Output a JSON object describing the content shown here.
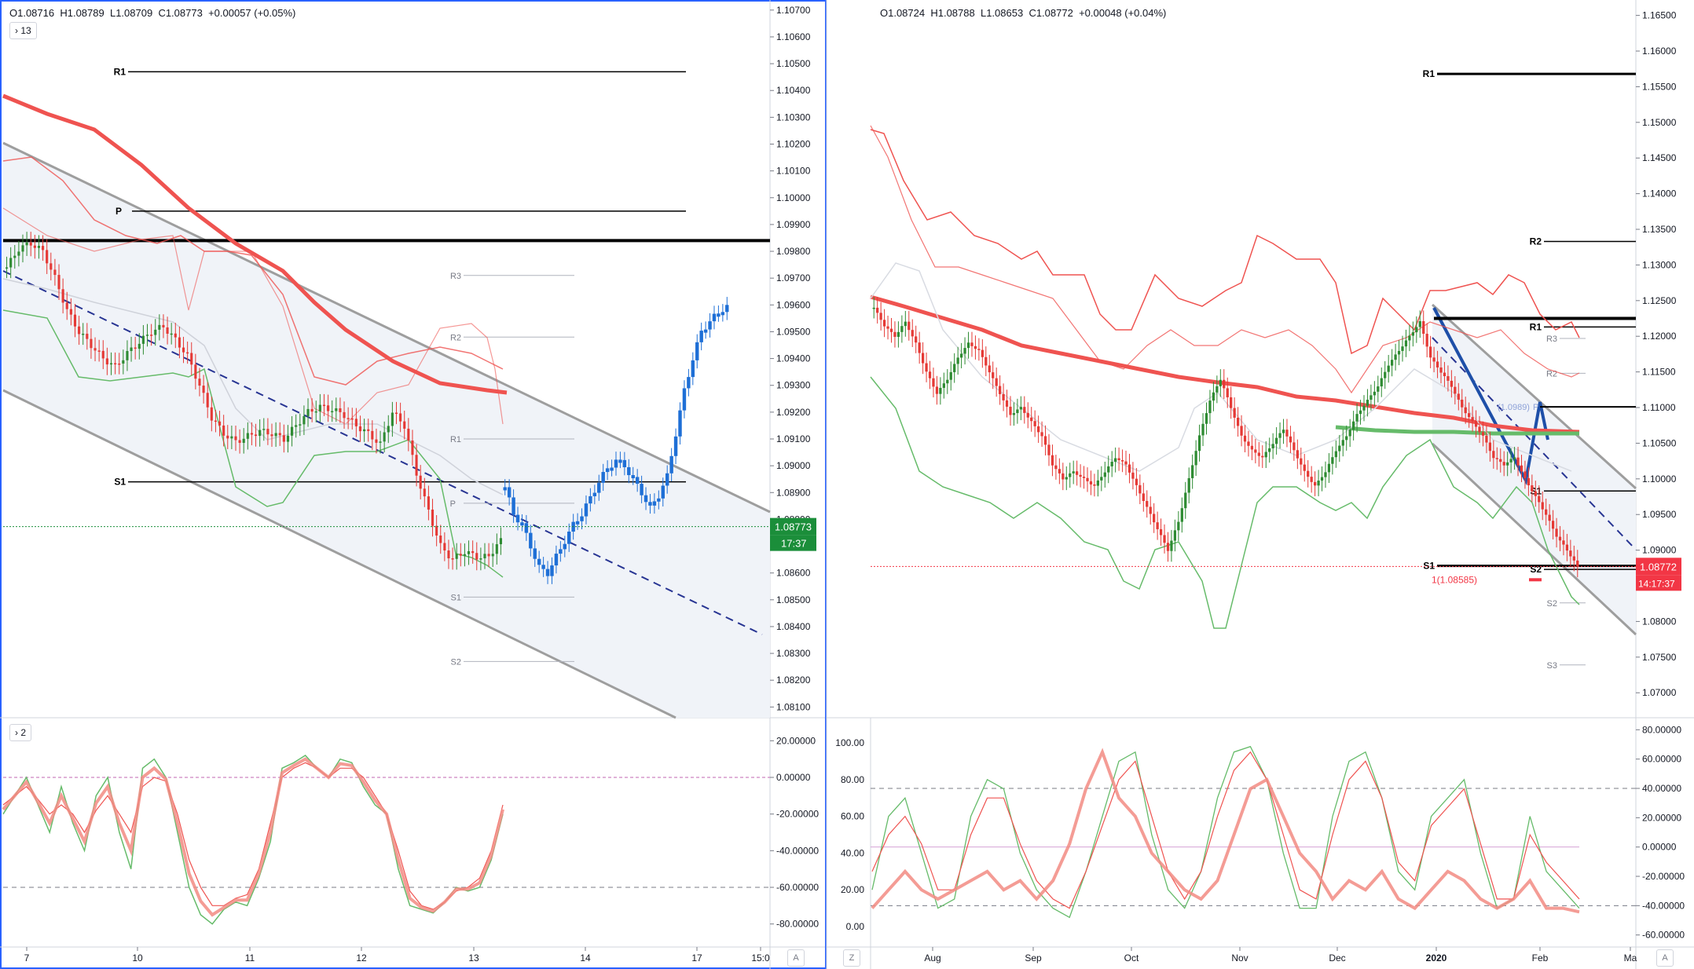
{
  "left": {
    "legend": {
      "o": "O1.08716",
      "h": "H1.08789",
      "l": "L1.08709",
      "c": "C1.08773",
      "chg": "+0.00057 (+0.05%)"
    },
    "collapse_main": "› 13",
    "collapse_osc": "› 2",
    "price_ticks": [
      "1.10700",
      "1.10600",
      "1.10500",
      "1.10400",
      "1.10300",
      "1.10200",
      "1.10100",
      "1.10000",
      "1.09900",
      "1.09800",
      "1.09700",
      "1.09600",
      "1.09500",
      "1.09400",
      "1.09300",
      "1.09200",
      "1.09100",
      "1.09000",
      "1.08900",
      "1.08800",
      "1.08700",
      "1.08600",
      "1.08500",
      "1.08400",
      "1.08300",
      "1.08200",
      "1.08100"
    ],
    "osc_ticks": [
      "20.00000",
      "0.00000",
      "-20.00000",
      "-40.00000",
      "-60.00000",
      "-80.00000"
    ],
    "time_ticks": [
      "7",
      "10",
      "11",
      "12",
      "13",
      "14",
      "17",
      "15:0"
    ],
    "last_price": "1.08773",
    "countdown": "17:37",
    "pivot_labels": {
      "r1": "R1",
      "p": "P",
      "s1": "S1",
      "r3": "R3",
      "r2": "R2",
      "r1b": "R1",
      "pb": "P",
      "s1b": "S1",
      "s2": "S2"
    },
    "axis_badge": "A"
  },
  "right": {
    "legend": {
      "o": "O1.08724",
      "h": "H1.08788",
      "l": "L1.08653",
      "c": "C1.08772",
      "chg": "+0.00048 (+0.04%)"
    },
    "price_ticks": [
      "1.16500",
      "1.16000",
      "1.15500",
      "1.15000",
      "1.14500",
      "1.14000",
      "1.13500",
      "1.13000",
      "1.12500",
      "1.12000",
      "1.11500",
      "1.11000",
      "1.10500",
      "1.10000",
      "1.09500",
      "1.09000",
      "1.08500",
      "1.08000",
      "1.07500",
      "1.07000"
    ],
    "osc_left_ticks": [
      "100.00",
      "80.00",
      "60.00",
      "40.00",
      "20.00",
      "0.00"
    ],
    "osc_right_ticks": [
      "80.00000",
      "60.00000",
      "40.00000",
      "20.00000",
      "0.00000",
      "-20.00000",
      "-40.00000",
      "-60.00000"
    ],
    "time_ticks": [
      "Aug",
      "Sep",
      "Oct",
      "Nov",
      "Dec",
      "2020",
      "Feb",
      "Ma"
    ],
    "last_price": "1.08772",
    "countdown": "14:17:37",
    "annotation": "1(1.08585)",
    "fib_label": "(1.0989)",
    "pivot_labels": {
      "r1": "R1",
      "r2": "R2",
      "r1b": "R1",
      "r3b": "R3",
      "r2b": "R2",
      "s1a": "S1",
      "s1b": "S1",
      "s2": "S2",
      "s2b": "S2",
      "s3": "S3",
      "p": "P"
    },
    "axis_badge_left": "Z",
    "axis_badge_right": "A"
  },
  "colors": {
    "up": "#2e8b32",
    "down": "#e53935",
    "heikin": "#1e6fd6",
    "ma_red": "#ef5350",
    "ma_green": "#66bb6a",
    "channel": "#9e9e9e",
    "channel_fill": "#f0f3f8",
    "price_green": "#1b8e3a",
    "price_red": "#f23645",
    "pane_border": "#2962ff"
  },
  "chart_data": [
    {
      "type": "line",
      "title": "",
      "ylim": [
        1.0806,
        1.1072
      ],
      "pivot_levels": {
        "R1": 1.1047,
        "P": 1.0995,
        "S1": 1.0894,
        "R3": 1.0971,
        "R2": 1.0948,
        "R1_small": 1.091,
        "P_small": 1.0886,
        "S1_small": 1.0851,
        "S2_small": 1.0827
      },
      "horizontal_levels": [
        1.0984
      ],
      "last": 1.08773,
      "candles_close_path": [
        1.0974,
        1.0981,
        1.0983,
        1.098,
        1.097,
        1.0958,
        1.095,
        1.0945,
        1.094,
        1.0937,
        1.0942,
        1.0946,
        1.095,
        1.0952,
        1.0947,
        1.0941,
        1.093,
        1.0918,
        1.0912,
        1.0909,
        1.0911,
        1.0913,
        1.0912,
        1.091,
        1.0915,
        1.092,
        1.0922,
        1.0921,
        1.0919,
        1.0915,
        1.0912,
        1.0908,
        1.092,
        1.0915,
        1.0897,
        1.0883,
        1.087,
        1.0865,
        1.0868,
        1.0866,
        1.0866,
        1.0873
      ],
      "heikin_path": [
        1.0892,
        1.0882,
        1.0878,
        1.087,
        1.0862,
        1.086,
        1.0866,
        1.0872,
        1.0878,
        1.0882,
        1.0888,
        1.0894,
        1.0899,
        1.0902,
        1.09,
        1.0895,
        1.089,
        1.0884,
        1.0889,
        1.0896,
        1.0912,
        1.0928,
        1.094,
        1.095,
        1.0954,
        1.0957,
        1.096
      ],
      "oscillator_ylim": [
        -90,
        30
      ],
      "osc_fast": [
        -20,
        -10,
        0,
        -15,
        -30,
        -5,
        -25,
        -40,
        -10,
        0,
        -30,
        -50,
        5,
        10,
        0,
        -30,
        -60,
        -75,
        -80,
        -72,
        -68,
        -70,
        -55,
        -35,
        5,
        8,
        12,
        5,
        0,
        10,
        8,
        -5,
        -15,
        -20,
        -50,
        -70,
        -72,
        -74,
        -68,
        -60,
        -62,
        -60,
        -45,
        -20
      ],
      "osc_slow": [
        -15,
        -10,
        -5,
        -12,
        -20,
        -15,
        -20,
        -30,
        -18,
        -10,
        -20,
        -30,
        -5,
        0,
        -2,
        -20,
        -45,
        -60,
        -70,
        -70,
        -66,
        -64,
        -50,
        -25,
        0,
        5,
        8,
        5,
        0,
        5,
        5,
        0,
        -10,
        -20,
        -40,
        -62,
        -70,
        -72,
        -68,
        -62,
        -60,
        -55,
        -40,
        -15
      ]
    },
    {
      "type": "line",
      "title": "",
      "ylim": [
        1.0665,
        1.1665
      ],
      "pivot_levels": {
        "R1": 1.1568,
        "R2": 1.1333,
        "R1_small": 1.1213,
        "R3_small": 1.1197,
        "R2_small": 1.1148,
        "S1_small": 1.0983,
        "S1": 1.0878,
        "S2": 1.0873,
        "S2_small": 1.0826,
        "S3": 1.0739
      },
      "horizontal_levels": [
        1.1225,
        1.1101,
        1.0983
      ],
      "last": 1.08772,
      "annotation_value": 1.08585,
      "x_range": [
        "Jul",
        "Mar"
      ],
      "candles_close_path": [
        1.124,
        1.1215,
        1.12,
        1.122,
        1.119,
        1.115,
        1.112,
        1.114,
        1.117,
        1.119,
        1.118,
        1.115,
        1.112,
        1.109,
        1.11,
        1.108,
        1.106,
        1.102,
        1.1,
        1.101,
        1.1,
        1.099,
        1.101,
        1.103,
        1.102,
        1.099,
        1.096,
        1.093,
        1.09,
        1.094,
        1.1,
        1.106,
        1.111,
        1.114,
        1.11,
        1.106,
        1.104,
        1.103,
        1.105,
        1.107,
        1.104,
        1.101,
        1.099,
        1.101,
        1.104,
        1.106,
        1.109,
        1.111,
        1.113,
        1.116,
        1.118,
        1.12,
        1.122,
        1.117,
        1.115,
        1.113,
        1.11,
        1.108,
        1.106,
        1.103,
        1.102,
        1.103,
        1.1,
        1.0975,
        1.095,
        1.092,
        1.09,
        1.0877
      ],
      "oscillator_ylim": [
        -65,
        85
      ],
      "osc_fast": [
        20,
        60,
        70,
        40,
        10,
        15,
        60,
        80,
        75,
        40,
        20,
        10,
        5,
        30,
        60,
        90,
        95,
        50,
        20,
        10,
        30,
        70,
        95,
        98,
        80,
        40,
        10,
        10,
        60,
        90,
        95,
        70,
        30,
        20,
        60,
        70,
        80,
        40,
        10,
        15,
        60,
        30,
        20,
        10
      ],
      "osc_slow": [
        30,
        50,
        60,
        45,
        20,
        20,
        50,
        70,
        70,
        45,
        25,
        15,
        10,
        30,
        55,
        80,
        90,
        60,
        30,
        15,
        30,
        60,
        85,
        95,
        80,
        50,
        20,
        15,
        50,
        80,
        90,
        70,
        35,
        25,
        55,
        65,
        75,
        45,
        15,
        15,
        50,
        35,
        25,
        15
      ]
    }
  ]
}
